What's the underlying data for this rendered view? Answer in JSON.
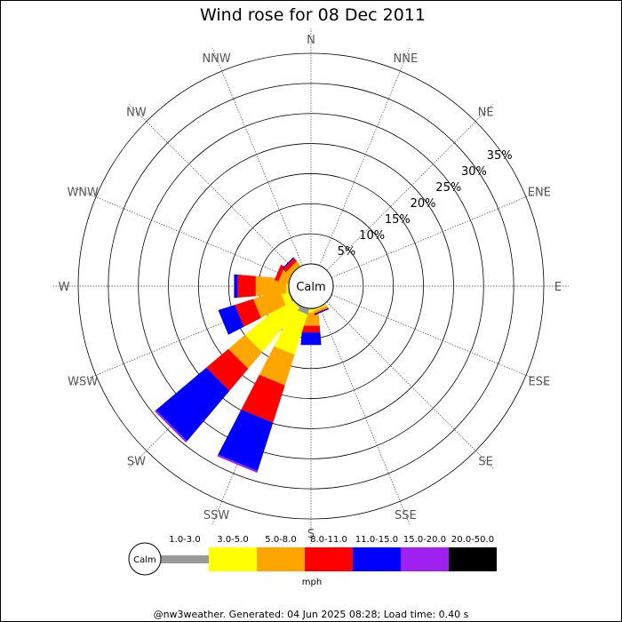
{
  "chart_data": {
    "type": "polar-stacked-bar",
    "title": "Wind rose for 08 Dec 2011",
    "directions": [
      "N",
      "NNE",
      "NE",
      "ENE",
      "E",
      "ESE",
      "SE",
      "SSE",
      "S",
      "SSW",
      "SW",
      "WSW",
      "W",
      "WNW",
      "NW",
      "NNW"
    ],
    "radial_ticks": [
      "5%",
      "10%",
      "15%",
      "20%",
      "25%",
      "30%",
      "35%"
    ],
    "radial_max_percent": 35,
    "unit": "mph",
    "calm_label": "Calm",
    "speed_bins": [
      {
        "label": "1.0-3.0",
        "color": "#999999"
      },
      {
        "label": "3.0-5.0",
        "color": "#ffff00"
      },
      {
        "label": "5.0-8.0",
        "color": "#ffa500"
      },
      {
        "label": "8.0-11.0",
        "color": "#ff0000"
      },
      {
        "label": "11.0-15.0",
        "color": "#0000ff"
      },
      {
        "label": "15.0-20.0",
        "color": "#a020f0"
      },
      {
        "label": "20.0-50.0",
        "color": "#000000"
      }
    ],
    "series_percent": {
      "S": [
        0.2,
        0.5,
        2.2,
        1.1,
        2.1,
        0.0,
        0.0
      ],
      "SSE": [
        0.1,
        0.2,
        0.4,
        0.1,
        0.2,
        0.0,
        0.0
      ],
      "SSW": [
        0.9,
        7.0,
        5.3,
        6.5,
        8.4,
        0.3,
        0.0
      ],
      "SW": [
        0.2,
        9.6,
        3.6,
        4.8,
        10.9,
        0.3,
        0.0
      ],
      "WSW": [
        0.2,
        1.2,
        4.6,
        3.2,
        2.9,
        0.0,
        0.0
      ],
      "W": [
        0.1,
        0.3,
        5.1,
        3.0,
        0.6,
        0.0,
        0.0
      ],
      "WNW": [
        0.0,
        0.0,
        1.6,
        0.7,
        0.0,
        0.0,
        0.0
      ],
      "NW": [
        0.0,
        0.0,
        0.9,
        0.7,
        0.2,
        0.0,
        0.0
      ]
    }
  },
  "footer": "@nw3weather. Generated: 04 Jun 2025 08:28; Load time: 0.40 s"
}
